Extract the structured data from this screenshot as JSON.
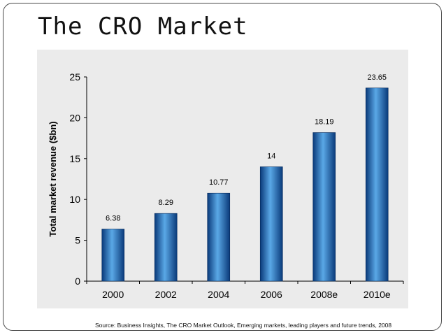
{
  "slide": {
    "title": "The CRO Market",
    "source": "Source: Business Insights, The CRO Market Outlook, Emerging markets, leading players and future trends, 2008"
  },
  "chart_data": {
    "type": "bar",
    "title": "",
    "xlabel": "",
    "ylabel": "Total market revenue ($bn)",
    "categories": [
      "2000",
      "2002",
      "2004",
      "2006",
      "2008e",
      "2010e"
    ],
    "values": [
      6.38,
      8.29,
      10.77,
      14,
      18.19,
      23.65
    ],
    "value_labels": [
      "6.38",
      "8.29",
      "10.77",
      "14",
      "18.19",
      "23.65"
    ],
    "yticks": [
      "0",
      "5",
      "10",
      "15",
      "20",
      "25"
    ],
    "ylim": [
      0,
      25
    ],
    "grid": false,
    "legend": "none",
    "colors": {
      "bar_light": "#5aa8e6",
      "bar_dark": "#0a3a7a",
      "panel": "#ebebeb",
      "axis": "#000000"
    }
  }
}
